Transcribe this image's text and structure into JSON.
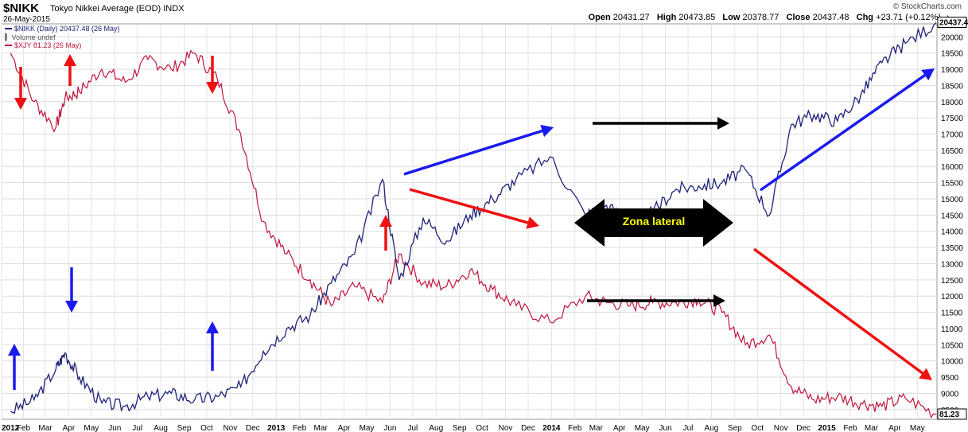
{
  "header": {
    "symbol": "$NIKK",
    "name": "Tokyo Nikkei Average (EOD)",
    "exchange": "INDX",
    "date": "26-May-2015",
    "brand": "© StockCharts.com",
    "open_label": "Open",
    "open": "20431.27",
    "high_label": "High",
    "high": "20473.85",
    "low_label": "Low",
    "low": "20378.77",
    "close_label": "Close",
    "close": "20437.48",
    "chg_label": "Chg",
    "chg": "+23.71 (+0.12%)",
    "chg_arrow": "▲"
  },
  "legend": [
    {
      "text": "$NIKK (Daily) 20437.48 (26 May)",
      "color": "#1f237a"
    },
    {
      "text": "Volume undef",
      "color": "#777777"
    },
    {
      "text": "$XJY 81.23 (26 May)",
      "color": "#c0143c"
    }
  ],
  "annotation": {
    "text": "Zona lateral"
  },
  "chart_data": {
    "type": "line",
    "x_tick_labels": [
      "2012",
      "Feb",
      "Mar",
      "Apr",
      "May",
      "Jun",
      "Jul",
      "Aug",
      "Sep",
      "Oct",
      "Nov",
      "Dec",
      "2013",
      "Feb",
      "Mar",
      "Apr",
      "May",
      "Jun",
      "Jul",
      "Aug",
      "Sep",
      "Oct",
      "Nov",
      "Dec",
      "2014",
      "Feb",
      "Mar",
      "Apr",
      "May",
      "Jun",
      "Jul",
      "Aug",
      "Sep",
      "Oct",
      "Nov",
      "Dec",
      "2015",
      "Feb",
      "Mar",
      "Apr",
      "May"
    ],
    "y_tick_labels": [
      "8500",
      "9000",
      "9500",
      "10000",
      "10500",
      "11000",
      "11500",
      "12000",
      "12500",
      "13000",
      "13500",
      "14000",
      "14500",
      "15000",
      "15500",
      "16000",
      "16500",
      "17000",
      "17500",
      "18000",
      "18500",
      "19000",
      "19500",
      "20000"
    ],
    "ylim": [
      8200,
      20400
    ],
    "last_values": {
      "nikk": "20437.48",
      "xjy": "81.23"
    },
    "colors": {
      "nikk": "#1f237a",
      "xjy": "#c0143c"
    },
    "series": [
      {
        "name": "$NIKK (Daily)",
        "unit": "index (right axis)",
        "x": [
          "2012-01",
          "2012-02",
          "2012-03",
          "2012-03-27",
          "2012-04",
          "2012-05",
          "2012-06",
          "2012-07",
          "2012-08",
          "2012-09",
          "2012-10",
          "2012-11",
          "2012-12",
          "2013-01",
          "2013-02",
          "2013-03",
          "2013-04",
          "2013-05-22",
          "2013-06-13",
          "2013-07",
          "2013-08",
          "2013-09",
          "2013-10",
          "2013-11",
          "2013-12-30",
          "2014-02",
          "2014-03",
          "2014-04",
          "2014-05",
          "2014-06",
          "2014-07",
          "2014-08",
          "2014-09",
          "2014-10-17",
          "2014-11",
          "2014-12",
          "2015-01",
          "2015-02",
          "2015-03",
          "2015-04",
          "2015-05-26"
        ],
        "values": [
          8450,
          8800,
          9750,
          10250,
          9500,
          8700,
          8600,
          8900,
          9000,
          8800,
          8900,
          9200,
          10300,
          11000,
          11400,
          12400,
          13300,
          15600,
          12500,
          14400,
          13700,
          14500,
          15000,
          15600,
          16300,
          14500,
          14800,
          14300,
          14600,
          15300,
          15400,
          15500,
          15900,
          14500,
          17300,
          17600,
          17400,
          18200,
          19200,
          19800,
          20437
        ]
      },
      {
        "name": "$XJY",
        "unit": "yen (left scale)",
        "x": [
          "2012-01",
          "2012-02",
          "2012-03",
          "2012-03-27",
          "2012-04",
          "2012-05",
          "2012-06",
          "2012-07",
          "2012-08",
          "2012-09",
          "2012-10",
          "2012-11",
          "2012-12",
          "2013-01",
          "2013-02",
          "2013-03",
          "2013-04",
          "2013-05-22",
          "2013-06-13",
          "2013-07",
          "2013-08",
          "2013-09",
          "2013-10",
          "2013-11",
          "2013-12-30",
          "2014-02",
          "2014-03",
          "2014-04",
          "2014-05",
          "2014-06",
          "2014-07",
          "2014-08",
          "2014-09",
          "2014-10-17",
          "2014-11",
          "2014-12",
          "2015-01",
          "2015-02",
          "2015-03",
          "2015-04",
          "2015-05-26"
        ],
        "values": [
          19500,
          18000,
          17200,
          18100,
          18300,
          19000,
          18600,
          19300,
          19000,
          19500,
          18700,
          17000,
          14300,
          13300,
          12500,
          11700,
          12300,
          11800,
          13300,
          12400,
          12300,
          12800,
          12200,
          11700,
          11200,
          12000,
          11800,
          11700,
          11800,
          11800,
          11900,
          11500,
          10500,
          10800,
          9200,
          8800,
          8900,
          8700,
          8600,
          8850,
          8350
        ]
      }
    ],
    "annotations": [
      {
        "text": "Zona lateral",
        "type": "double-arrow",
        "color": "#000000"
      }
    ]
  }
}
